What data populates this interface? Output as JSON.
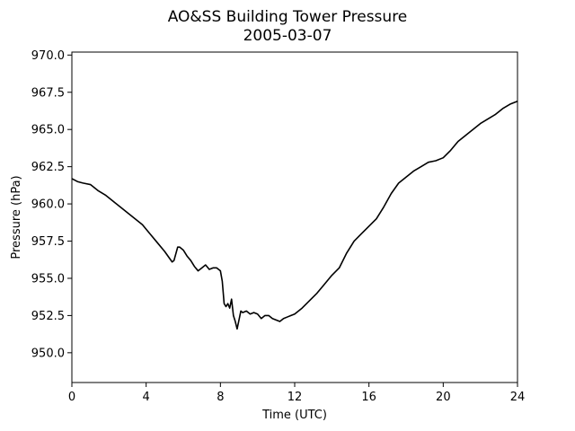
{
  "chart_data": {
    "type": "line",
    "title": "AO&SS Building Tower Pressure",
    "subtitle": "2005-03-07",
    "xlabel": "Time (UTC)",
    "ylabel": "Pressure (hPa)",
    "xlim": [
      0,
      24
    ],
    "ylim": [
      948.0,
      970.2
    ],
    "xticks": [
      0,
      4,
      8,
      12,
      16,
      20,
      24
    ],
    "xtick_labels": [
      "0",
      "4",
      "8",
      "12",
      "16",
      "20",
      "24"
    ],
    "yticks": [
      950.0,
      952.5,
      955.0,
      957.5,
      960.0,
      962.5,
      965.0,
      967.5,
      970.0
    ],
    "ytick_labels": [
      "950.0",
      "952.5",
      "955.0",
      "957.5",
      "960.0",
      "962.5",
      "965.0",
      "967.5",
      "970.0"
    ],
    "grid": false,
    "legend": "none",
    "line_color": "#000000",
    "series": [
      {
        "x": [
          0.0,
          0.3,
          0.6,
          1.0,
          1.4,
          1.8,
          2.2,
          2.6,
          3.0,
          3.4,
          3.8,
          4.2,
          4.6,
          5.0,
          5.4,
          5.5,
          5.7,
          5.8,
          6.0,
          6.2,
          6.4,
          6.6,
          6.8,
          7.0,
          7.2,
          7.4,
          7.6,
          7.8,
          8.0,
          8.1,
          8.2,
          8.3,
          8.4,
          8.5,
          8.6,
          8.7,
          8.8,
          8.9,
          9.0,
          9.1,
          9.2,
          9.4,
          9.6,
          9.8,
          10.0,
          10.2,
          10.4,
          10.6,
          10.8,
          11.0,
          11.2,
          11.4,
          11.6,
          11.8,
          12.0,
          12.4,
          12.8,
          13.2,
          13.6,
          14.0,
          14.4,
          14.8,
          15.2,
          15.6,
          16.0,
          16.4,
          16.8,
          17.2,
          17.6,
          18.0,
          18.4,
          18.8,
          19.2,
          19.6,
          20.0,
          20.4,
          20.8,
          21.2,
          21.6,
          22.0,
          22.4,
          22.8,
          23.2,
          23.6,
          24.0
        ],
        "values": [
          961.7,
          961.5,
          961.4,
          961.3,
          960.9,
          960.6,
          960.2,
          959.8,
          959.4,
          959.0,
          958.6,
          958.0,
          957.4,
          956.8,
          956.1,
          956.2,
          957.1,
          957.1,
          956.9,
          956.5,
          956.2,
          955.8,
          955.5,
          955.7,
          955.9,
          955.6,
          955.7,
          955.7,
          955.5,
          954.8,
          953.3,
          953.1,
          953.3,
          953.0,
          953.6,
          952.5,
          952.1,
          951.6,
          952.2,
          952.8,
          952.7,
          952.8,
          952.6,
          952.7,
          952.6,
          952.3,
          952.5,
          952.5,
          952.3,
          952.2,
          952.1,
          952.3,
          952.4,
          952.5,
          952.6,
          953.0,
          953.5,
          954.0,
          954.6,
          955.2,
          955.7,
          956.7,
          957.5,
          958.0,
          958.5,
          959.0,
          959.8,
          960.7,
          961.4,
          961.8,
          962.2,
          962.5,
          962.8,
          962.9,
          963.1,
          963.6,
          964.2,
          964.6,
          965.0,
          965.4,
          965.7,
          966.0,
          966.4,
          966.7,
          966.9
        ]
      }
    ]
  }
}
